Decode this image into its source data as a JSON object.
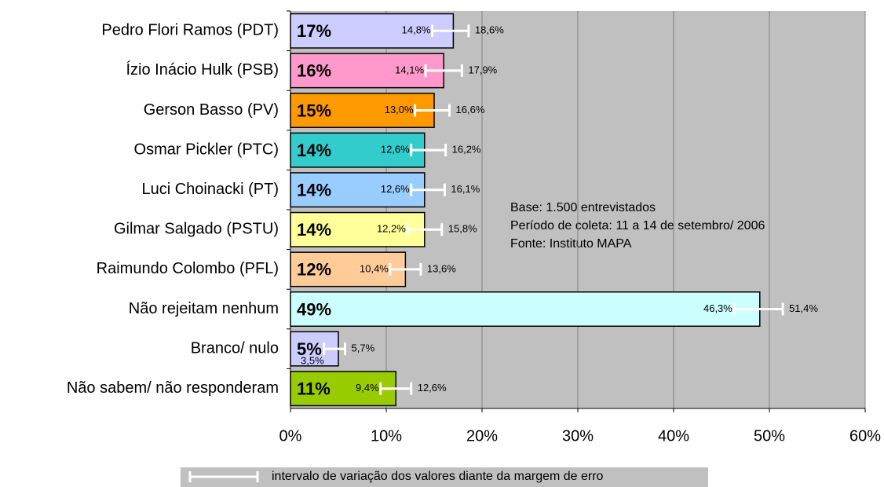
{
  "chart_data": {
    "type": "bar",
    "categories": [
      "Pedro Flori Ramos (PDT)",
      "Ízio Inácio Hulk (PSB)",
      "Gerson Basso (PV)",
      "Osmar Pickler (PTC)",
      "Luci Choinacki (PT)",
      "Gilmar Salgado (PSTU)",
      "Raimundo Colombo (PFL)",
      "Não rejeitam nenhum",
      "Branco/ nulo",
      "Não sabem/ não responderam"
    ],
    "values": [
      17,
      16,
      15,
      14,
      14,
      14,
      12,
      49,
      5,
      11
    ],
    "value_labels": [
      "17%",
      "16%",
      "15%",
      "14%",
      "14%",
      "14%",
      "12%",
      "49%",
      "5%",
      "11%"
    ],
    "colors": [
      "#ccccff",
      "#ff99cc",
      "#ff9900",
      "#33cccc",
      "#99ccff",
      "#ffff99",
      "#ffcc99",
      "#ccffff",
      "#ccccff",
      "#99cc00"
    ],
    "low": [
      14.8,
      14.1,
      13.0,
      12.6,
      12.6,
      12.2,
      10.4,
      46.3,
      3.5,
      9.4
    ],
    "low_labels": [
      "14,8%",
      "14,1%",
      "13,0%",
      "12,6%",
      "12,6%",
      "12,2%",
      "10,4%",
      "46,3%",
      "3,5%",
      "9,4%"
    ],
    "high": [
      18.6,
      17.9,
      16.6,
      16.2,
      16.1,
      15.8,
      13.6,
      51.4,
      5.7,
      12.6
    ],
    "high_labels": [
      "18,6%",
      "17,9%",
      "16,6%",
      "16,2%",
      "16,1%",
      "15,8%",
      "13,6%",
      "51,4%",
      "5,7%",
      "12,6%"
    ],
    "xlim": [
      0,
      60
    ],
    "xticks": [
      {
        "value": 0,
        "label": "0%"
      },
      {
        "value": 10,
        "label": "10%"
      },
      {
        "value": 20,
        "label": "20%"
      },
      {
        "value": 30,
        "label": "30%"
      },
      {
        "value": 40,
        "label": "40%"
      },
      {
        "value": 50,
        "label": "50%"
      },
      {
        "value": 60,
        "label": "60%"
      }
    ],
    "grid": true,
    "annotations": [
      "Base: 1.500 entrevistados",
      "Período de coleta: 11 a 14 de setembro/ 2006",
      "Fonte: Instituto MAPA"
    ],
    "legend": "intervalo de variação dos valores diante da margem de erro"
  }
}
